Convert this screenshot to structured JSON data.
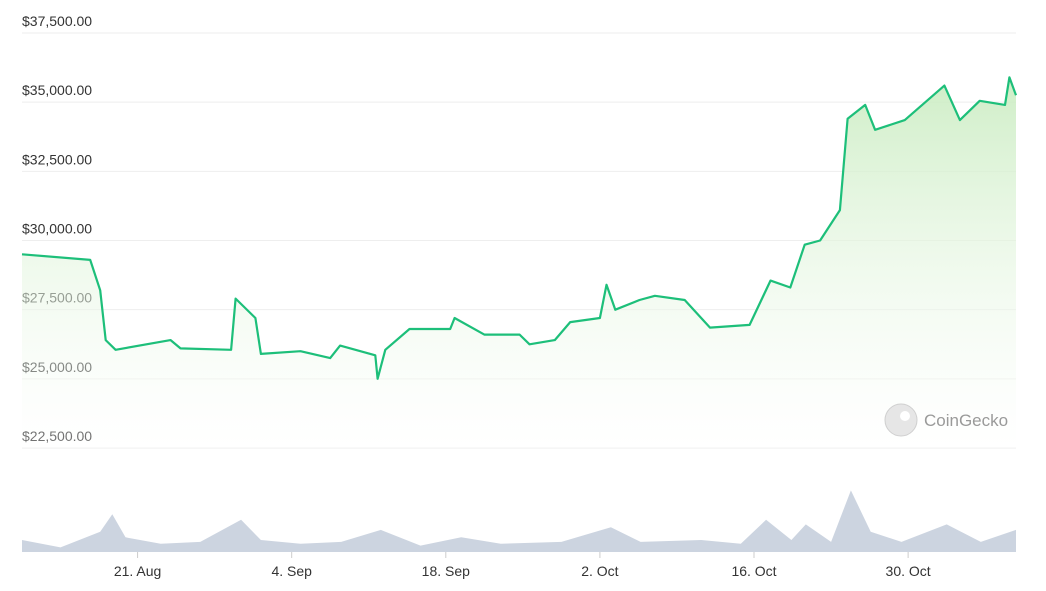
{
  "chart_data": [
    {
      "type": "line",
      "color": "#1dbf7a",
      "annotation": "CoinGecko",
      "grid": true,
      "xlim": [
        -10.5,
        79.8
      ],
      "ylim": [
        22500,
        37500
      ],
      "yticks": [
        {
          "value": 22500,
          "label": "$22,500.00"
        },
        {
          "value": 25000,
          "label": "$25,000.00"
        },
        {
          "value": 27500,
          "label": "$27,500.00"
        },
        {
          "value": 30000,
          "label": "$30,000.00"
        },
        {
          "value": 32500,
          "label": "$32,500.00"
        },
        {
          "value": 35000,
          "label": "$35,000.00"
        },
        {
          "value": 37500,
          "label": "$37,500.00"
        }
      ],
      "x": [
        -10.5,
        -4.3,
        -3.4,
        -2.9,
        -2.0,
        3.0,
        3.9,
        8.5,
        8.9,
        10.7,
        11.2,
        14.8,
        17.5,
        18.4,
        21.6,
        21.8,
        22.5,
        24.7,
        28.4,
        28.8,
        31.5,
        34.7,
        35.6,
        37.9,
        39.3,
        42.0,
        42.6,
        43.4,
        45.6,
        47.0,
        49.7,
        52.0,
        55.6,
        57.5,
        59.3,
        60.6,
        62.0,
        63.8,
        64.5,
        66.1,
        67.0,
        69.7,
        73.3,
        74.7,
        76.5,
        78.8,
        79.2,
        79.8
      ],
      "values": [
        29500,
        29300,
        28200,
        26400,
        26050,
        26400,
        26100,
        26050,
        27900,
        27200,
        25900,
        26000,
        25750,
        26200,
        25850,
        25000,
        26050,
        26800,
        26800,
        27200,
        26600,
        26600,
        26250,
        26400,
        27050,
        27200,
        28400,
        27500,
        27850,
        28000,
        27850,
        26850,
        26950,
        28550,
        28300,
        29850,
        30000,
        31100,
        34400,
        34900,
        34000,
        34350,
        35600,
        34350,
        35050,
        34900,
        35900,
        35250
      ]
    },
    {
      "type": "area",
      "color": "#ccd4e0",
      "xlim": [
        -10.5,
        79.8
      ],
      "ylim": [
        0,
        100
      ],
      "xticks": [
        {
          "value": 0,
          "label": "21. Aug"
        },
        {
          "value": 14,
          "label": "4. Sep"
        },
        {
          "value": 28,
          "label": "18. Sep"
        },
        {
          "value": 42,
          "label": "2. Oct"
        },
        {
          "value": 56,
          "label": "16. Oct"
        },
        {
          "value": 70,
          "label": "30. Oct"
        }
      ],
      "x": [
        -10.5,
        -7,
        -3.4,
        -2.3,
        -1.1,
        2.1,
        5.7,
        9.4,
        11.2,
        14.8,
        18.5,
        22.1,
        25.7,
        29.4,
        33,
        38.5,
        43,
        45.7,
        51.2,
        54.8,
        57.1,
        59.4,
        60.7,
        63,
        64.8,
        66.6,
        69.4,
        73.5,
        76.6,
        79.8
      ],
      "values": [
        13,
        5,
        22,
        41,
        16,
        9,
        11,
        35,
        13,
        9,
        11,
        24,
        7,
        16,
        9,
        11,
        27,
        11,
        13,
        9,
        35,
        13,
        30,
        11,
        67,
        22,
        11,
        30,
        11,
        24
      ]
    }
  ]
}
